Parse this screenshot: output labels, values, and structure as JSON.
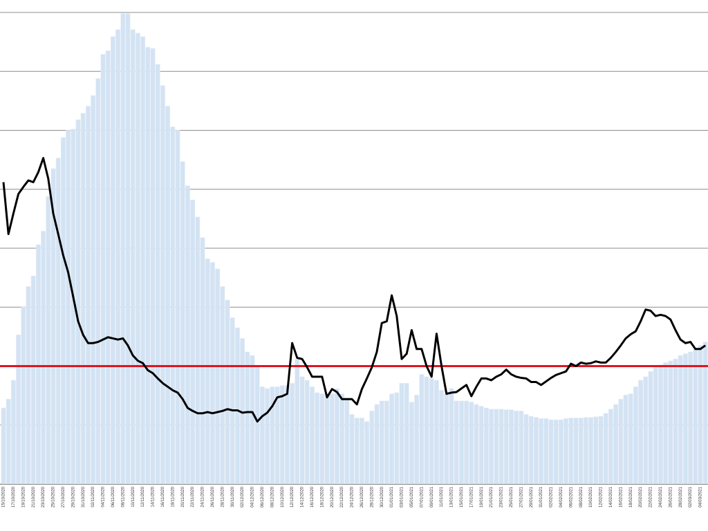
{
  "chart_data": {
    "type": "combo",
    "categories": [
      "15/10/2020",
      null,
      "17/10/2020",
      null,
      "19/10/2020",
      null,
      "21/10/2020",
      null,
      "23/10/2020",
      null,
      "25/10/2020",
      null,
      "27/10/2020",
      null,
      "29/10/2020",
      null,
      "31/10/2020",
      null,
      "02/11/2020",
      null,
      "04/11/2020",
      null,
      "06/11/2020",
      null,
      "08/11/2020",
      null,
      "10/11/2020",
      null,
      "12/11/2020",
      null,
      "14/11/2020",
      null,
      "16/11/2020",
      null,
      "18/11/2020",
      null,
      "20/11/2020",
      null,
      "22/11/2020",
      null,
      "24/11/2020",
      null,
      "26/11/2020",
      null,
      "28/11/2020",
      null,
      "30/11/2020",
      null,
      "02/12/2020",
      null,
      "04/12/2020",
      null,
      "06/12/2020",
      null,
      "08/12/2020",
      null,
      "10/12/2020",
      null,
      "12/12/2020",
      null,
      "14/12/2020",
      null,
      "16/12/2020",
      null,
      "18/12/2020",
      null,
      "20/12/2020",
      null,
      "22/12/2020",
      null,
      "24/12/2020",
      null,
      "26/12/2020",
      null,
      "28/12/2020",
      null,
      "30/12/2020",
      null,
      "01/01/2021",
      null,
      "03/01/2021",
      null,
      "05/01/2021",
      null,
      "07/01/2021",
      null,
      "09/01/2021",
      null,
      "11/01/2021",
      null,
      "13/01/2021",
      null,
      "15/01/2021",
      null,
      "17/01/2021",
      null,
      "19/01/2021",
      null,
      "21/01/2021",
      null,
      "23/01/2021",
      null,
      "25/01/2021",
      null,
      "27/01/2021",
      null,
      "29/01/2021",
      null,
      "31/01/2021",
      null,
      "02/02/2021",
      null,
      "04/02/2021",
      null,
      "06/02/2021",
      null,
      "08/02/2021",
      null,
      "10/02/2021",
      null,
      "12/02/2021",
      null,
      "14/02/2021",
      null,
      "16/02/2021",
      null,
      "18/02/2021",
      null,
      "20/02/2021",
      null,
      "22/02/2021",
      null,
      "24/02/2021",
      null,
      "26/02/2021",
      null,
      "28/02/2021",
      null,
      "02/03/2021",
      null,
      "04/03/2021",
      null
    ],
    "series": [
      {
        "type": "bar",
        "color": "#d3e3f3",
        "values": [
          1.29,
          1.44,
          1.76,
          2.53,
          3.0,
          3.35,
          3.53,
          4.06,
          4.29,
          4.88,
          5.35,
          5.53,
          5.88,
          6.0,
          6.02,
          6.18,
          6.29,
          6.41,
          6.59,
          6.88,
          7.29,
          7.35,
          7.59,
          7.71,
          7.98,
          7.98,
          7.71,
          7.65,
          7.59,
          7.41,
          7.39,
          7.12,
          6.76,
          6.41,
          6.06,
          6.0,
          5.47,
          5.06,
          4.82,
          4.53,
          4.18,
          3.82,
          3.76,
          3.65,
          3.35,
          3.12,
          2.82,
          2.65,
          2.47,
          2.24,
          2.18,
          2.0,
          1.65,
          1.62,
          1.65,
          1.65,
          1.67,
          1.67,
          1.71,
          2.12,
          1.82,
          1.76,
          1.65,
          1.55,
          1.53,
          1.53,
          1.53,
          1.62,
          1.53,
          1.44,
          1.18,
          1.12,
          1.12,
          1.06,
          1.24,
          1.35,
          1.41,
          1.41,
          1.53,
          1.55,
          1.71,
          1.71,
          1.39,
          1.51,
          1.86,
          1.82,
          1.79,
          1.76,
          1.59,
          1.53,
          1.62,
          1.41,
          1.41,
          1.41,
          1.39,
          1.35,
          1.32,
          1.29,
          1.27,
          1.27,
          1.27,
          1.26,
          1.26,
          1.24,
          1.24,
          1.18,
          1.15,
          1.13,
          1.11,
          1.11,
          1.09,
          1.09,
          1.09,
          1.11,
          1.12,
          1.12,
          1.12,
          1.13,
          1.13,
          1.14,
          1.15,
          1.2,
          1.27,
          1.35,
          1.44,
          1.51,
          1.53,
          1.65,
          1.76,
          1.82,
          1.91,
          1.98,
          2.02,
          2.06,
          2.09,
          2.12,
          2.18,
          2.21,
          2.24,
          2.29,
          2.35,
          2.41
        ]
      },
      {
        "type": "line",
        "color": "#000000",
        "values": [
          5.12,
          4.24,
          4.59,
          4.92,
          5.04,
          5.15,
          5.12,
          5.29,
          5.53,
          5.18,
          4.59,
          4.24,
          3.88,
          3.59,
          3.18,
          2.76,
          2.53,
          2.39,
          2.39,
          2.41,
          2.45,
          2.49,
          2.47,
          2.45,
          2.47,
          2.35,
          2.18,
          2.09,
          2.05,
          1.93,
          1.88,
          1.79,
          1.71,
          1.65,
          1.59,
          1.55,
          1.44,
          1.29,
          1.24,
          1.2,
          1.2,
          1.22,
          1.2,
          1.22,
          1.24,
          1.27,
          1.25,
          1.25,
          1.21,
          1.22,
          1.22,
          1.06,
          1.15,
          1.21,
          1.32,
          1.47,
          1.49,
          1.53,
          2.39,
          2.14,
          2.12,
          1.98,
          1.82,
          1.82,
          1.82,
          1.47,
          1.61,
          1.56,
          1.44,
          1.44,
          1.44,
          1.35,
          1.61,
          1.79,
          1.98,
          2.24,
          2.73,
          2.76,
          3.2,
          2.85,
          2.12,
          2.21,
          2.61,
          2.29,
          2.29,
          2.0,
          1.82,
          2.55,
          2.0,
          1.53,
          1.55,
          1.56,
          1.62,
          1.68,
          1.49,
          1.65,
          1.79,
          1.79,
          1.76,
          1.82,
          1.86,
          1.94,
          1.86,
          1.82,
          1.8,
          1.79,
          1.73,
          1.73,
          1.68,
          1.74,
          1.8,
          1.85,
          1.88,
          1.91,
          2.04,
          2.0,
          2.06,
          2.04,
          2.05,
          2.08,
          2.06,
          2.06,
          2.14,
          2.24,
          2.35,
          2.47,
          2.54,
          2.59,
          2.76,
          2.96,
          2.94,
          2.85,
          2.87,
          2.85,
          2.79,
          2.61,
          2.45,
          2.39,
          2.41,
          2.29,
          2.29,
          2.35
        ]
      }
    ],
    "reference_line": {
      "value": 2,
      "color": "#e0141e"
    },
    "ylim": [
      0,
      8
    ],
    "yticks": [
      0,
      1,
      2,
      3,
      4,
      5,
      6,
      7,
      8
    ],
    "grid": true
  }
}
